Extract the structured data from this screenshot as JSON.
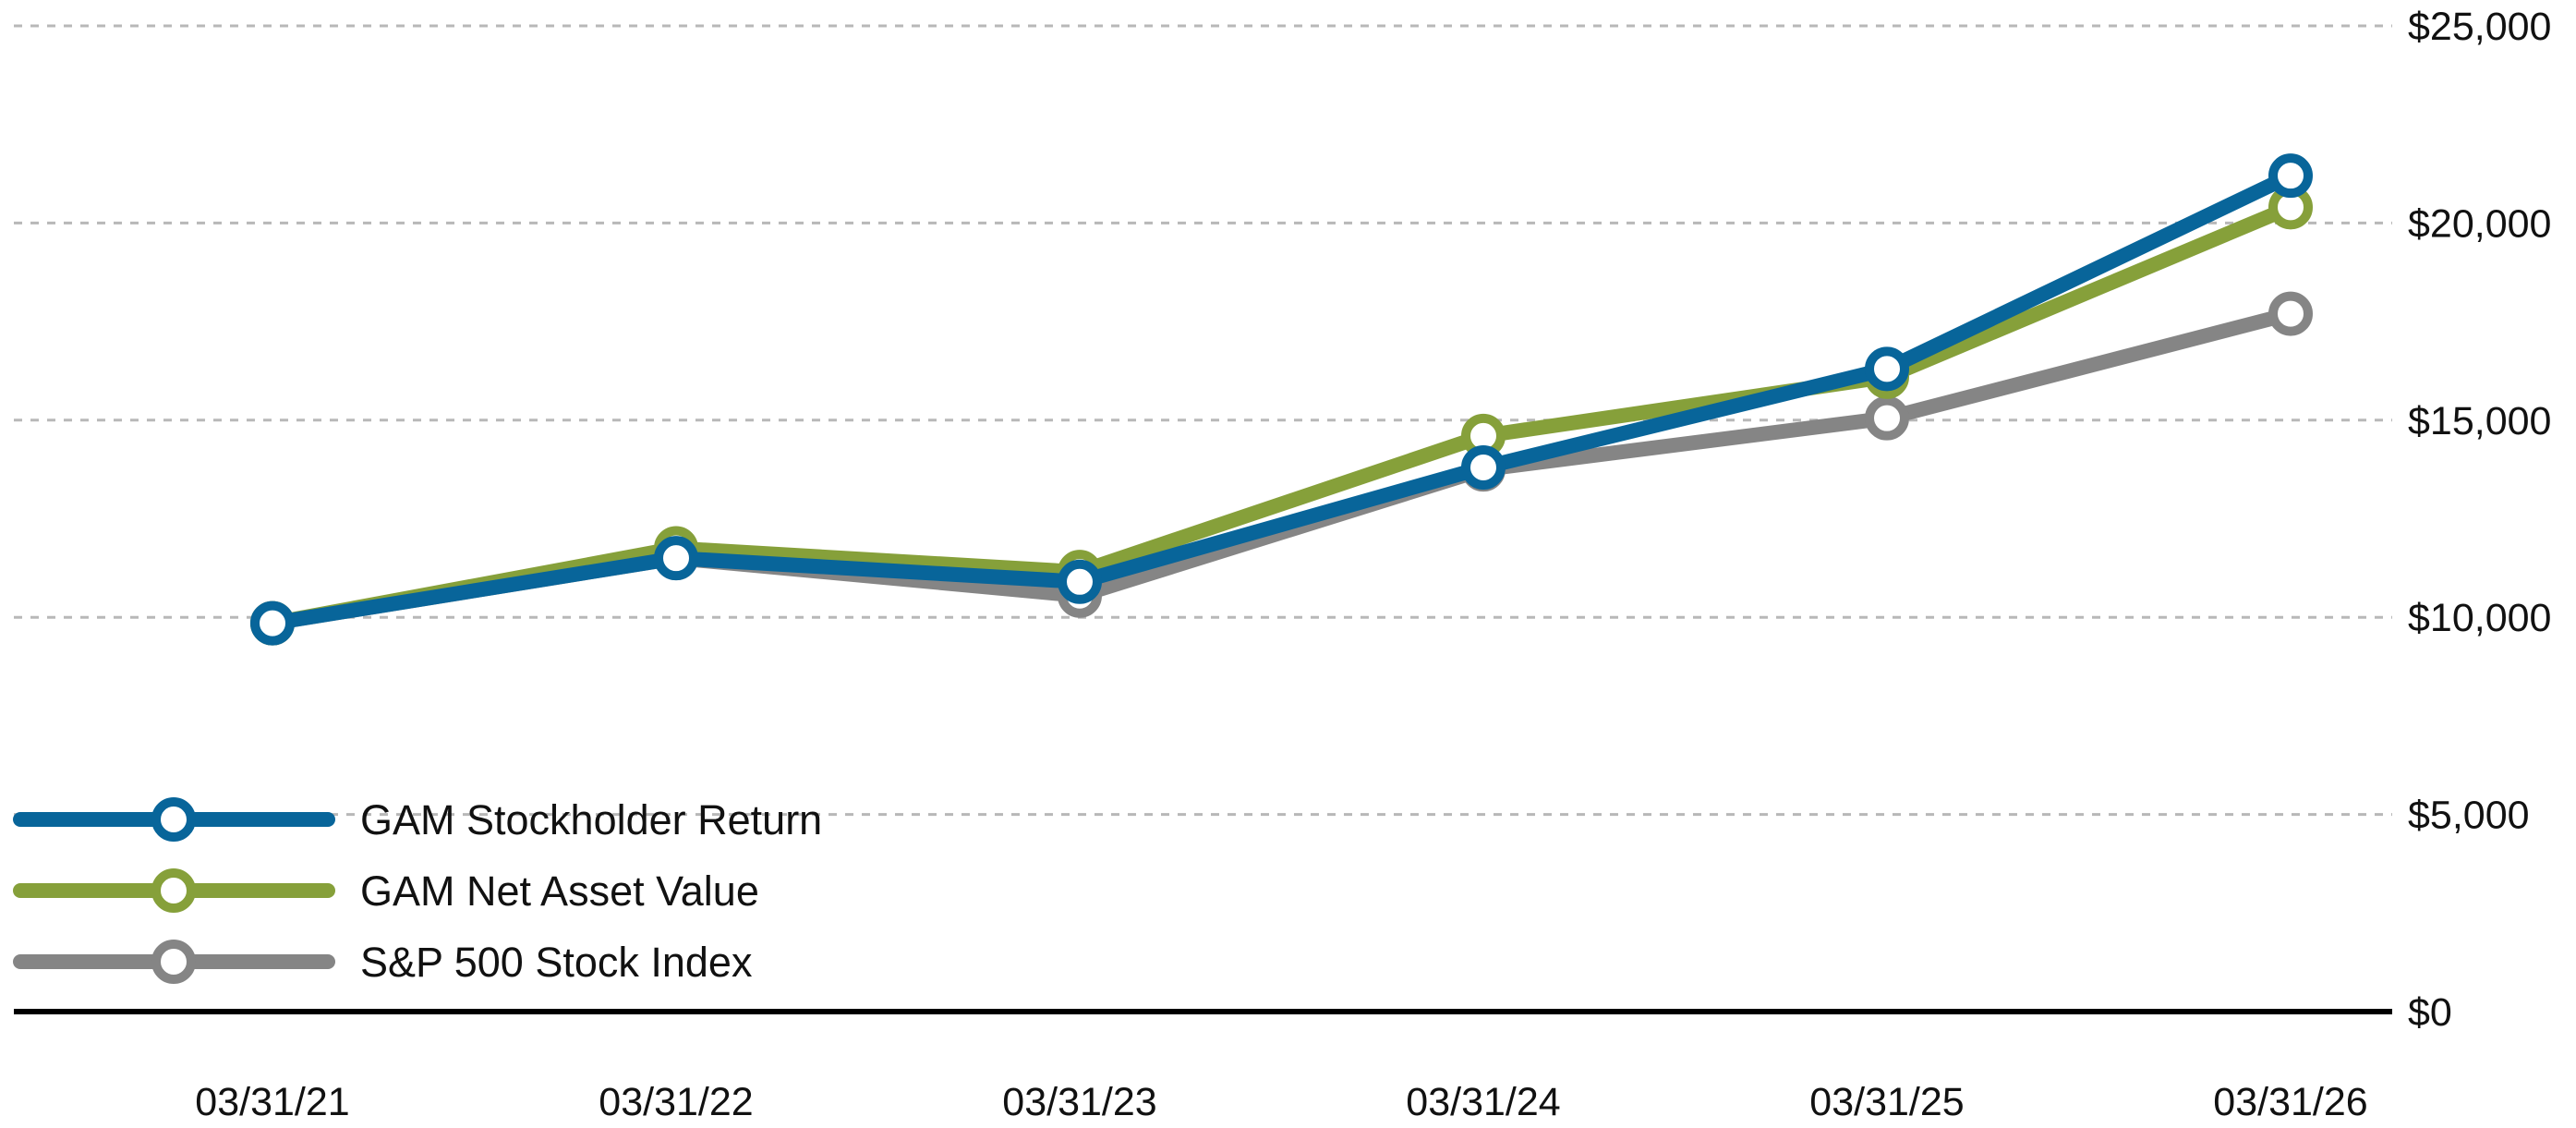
{
  "chart_data": {
    "type": "line",
    "categories": [
      "03/31/21",
      "03/31/22",
      "03/31/23",
      "03/31/24",
      "03/31/25",
      "03/31/26"
    ],
    "series": [
      {
        "name": "GAM Stockholder Return",
        "color": "#08659a",
        "values": [
          9850,
          11500,
          10900,
          13800,
          16300,
          21200
        ]
      },
      {
        "name": "GAM Net Asset Value",
        "color": "#86a03a",
        "values": [
          9850,
          11750,
          11150,
          14600,
          16100,
          20400
        ]
      },
      {
        "name": "S&P 500 Stock Index",
        "color": "#858585",
        "values": [
          9850,
          11500,
          10550,
          13750,
          15050,
          17700
        ]
      }
    ],
    "y_ticks": [
      0,
      5000,
      10000,
      15000,
      20000,
      25000
    ],
    "y_tick_labels": [
      "$0",
      "$5,000",
      "$10,000",
      "$15,000",
      "$20,000",
      "$25,000"
    ],
    "ylim": [
      0,
      25000
    ],
    "title": "",
    "xlabel": "",
    "ylabel": "",
    "grid": true,
    "legend_position": "bottom-left",
    "y_axis_side": "right"
  }
}
